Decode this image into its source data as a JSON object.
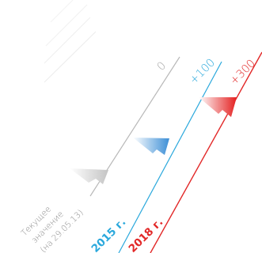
{
  "labels": {
    "current_line1": "Текущее",
    "current_line2": "значение",
    "current_line3": "(на 29.05.13)",
    "zero": "0",
    "plus100": "+100",
    "plus300": "+300",
    "year_2015": "2015 г.",
    "year_2018": "2018 г."
  },
  "colors": {
    "gray": "#b8b8b8",
    "blue": "#2aa8dc",
    "red": "#e22828",
    "gray_label": "#999999"
  }
}
